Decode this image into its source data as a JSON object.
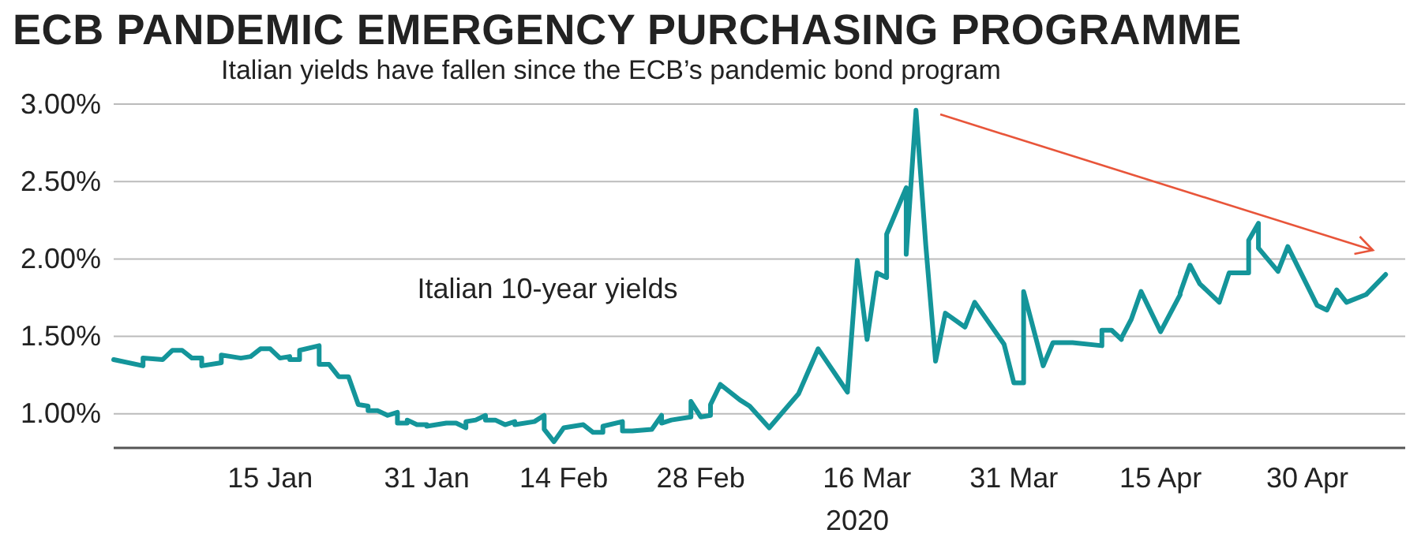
{
  "chart_data": {
    "type": "line",
    "title": "ECB PANDEMIC EMERGENCY PURCHASING PROGRAMME",
    "subtitle": "Italian yields have fallen since the ECB’s pandemic bond program",
    "xlabel": "2020",
    "xlim": [
      "2019-12-30",
      "2020-05-10"
    ],
    "ylim": [
      0.78,
      3.0
    ],
    "xticks": [
      {
        "value": "2020-01-15",
        "label": "15 Jan"
      },
      {
        "value": "2020-01-31",
        "label": "31 Jan"
      },
      {
        "value": "2020-02-14",
        "label": "14 Feb"
      },
      {
        "value": "2020-02-28",
        "label": "28 Feb"
      },
      {
        "value": "2020-03-16",
        "label": "16 Mar"
      },
      {
        "value": "2020-03-31",
        "label": "31 Mar"
      },
      {
        "value": "2020-04-15",
        "label": "15 Apr"
      },
      {
        "value": "2020-04-30",
        "label": "30 Apr"
      }
    ],
    "yticks": [
      {
        "value": 1,
        "label": "1.00%"
      },
      {
        "value": 1.5,
        "label": "1.50%"
      },
      {
        "value": 2,
        "label": "2.00%"
      },
      {
        "value": 2.5,
        "label": "2.50%"
      },
      {
        "value": 3,
        "label": "3.00%"
      }
    ],
    "grid": "y",
    "legend": false,
    "marker": "none",
    "line_style": "solid",
    "series": [
      {
        "name": "Italian 10-year yields",
        "color": "#14959a",
        "x": [
          "2019-12-30",
          "2020-01-02",
          "2020-01-02",
          "2020-01-04",
          "2020-01-05",
          "2020-01-06",
          "2020-01-07",
          "2020-01-08",
          "2020-01-08",
          "2020-01-10",
          "2020-01-10",
          "2020-01-11",
          "2020-01-12",
          "2020-01-13",
          "2020-01-14",
          "2020-01-15",
          "2020-01-16",
          "2020-01-17",
          "2020-01-17",
          "2020-01-18",
          "2020-01-18",
          "2020-01-20",
          "2020-01-20",
          "2020-01-21",
          "2020-01-22",
          "2020-01-23",
          "2020-01-24",
          "2020-01-25",
          "2020-01-25",
          "2020-01-26",
          "2020-01-27",
          "2020-01-28",
          "2020-01-28",
          "2020-01-29",
          "2020-01-29",
          "2020-01-30",
          "2020-01-31",
          "2020-01-31",
          "2020-02-02",
          "2020-02-03",
          "2020-02-04",
          "2020-02-04",
          "2020-02-05",
          "2020-02-06",
          "2020-02-06",
          "2020-02-07",
          "2020-02-08",
          "2020-02-09",
          "2020-02-09",
          "2020-02-11",
          "2020-02-12",
          "2020-02-12",
          "2020-02-13",
          "2020-02-14",
          "2020-02-16",
          "2020-02-17",
          "2020-02-18",
          "2020-02-18",
          "2020-02-20",
          "2020-02-20",
          "2020-02-21",
          "2020-02-23",
          "2020-02-24",
          "2020-02-24",
          "2020-02-25",
          "2020-02-27",
          "2020-02-27",
          "2020-02-28",
          "2020-02-29",
          "2020-02-29",
          "2020-02-29",
          "2020-03-01",
          "2020-03-03",
          "2020-03-04",
          "2020-03-06",
          "2020-03-09",
          "2020-03-11",
          "2020-03-11",
          "2020-03-14",
          "2020-03-14",
          "2020-03-15",
          "2020-03-16",
          "2020-03-17",
          "2020-03-18",
          "2020-03-18",
          "2020-03-20",
          "2020-03-20",
          "2020-03-21",
          "2020-03-22",
          "2020-03-23",
          "2020-03-24",
          "2020-03-26",
          "2020-03-27",
          "2020-03-30",
          "2020-03-31",
          "2020-04-01",
          "2020-04-01",
          "2020-04-03",
          "2020-04-04",
          "2020-04-06",
          "2020-04-09",
          "2020-04-09",
          "2020-04-10",
          "2020-04-11",
          "2020-04-11",
          "2020-04-12",
          "2020-04-13",
          "2020-04-15",
          "2020-04-17",
          "2020-04-17",
          "2020-04-18",
          "2020-04-19",
          "2020-04-21",
          "2020-04-22",
          "2020-04-24",
          "2020-04-24",
          "2020-04-25",
          "2020-04-25",
          "2020-04-27",
          "2020-04-28",
          "2020-05-01",
          "2020-05-02",
          "2020-05-03",
          "2020-05-04",
          "2020-05-06",
          "2020-05-08"
        ],
        "values": [
          1.35,
          1.31,
          1.36,
          1.35,
          1.41,
          1.41,
          1.36,
          1.36,
          1.31,
          1.33,
          1.38,
          1.37,
          1.36,
          1.37,
          1.42,
          1.42,
          1.36,
          1.37,
          1.35,
          1.35,
          1.41,
          1.44,
          1.32,
          1.32,
          1.24,
          1.24,
          1.06,
          1.05,
          1.02,
          1.02,
          0.99,
          1.01,
          0.94,
          0.94,
          0.96,
          0.93,
          0.93,
          0.92,
          0.94,
          0.94,
          0.91,
          0.95,
          0.96,
          0.99,
          0.96,
          0.96,
          0.93,
          0.95,
          0.93,
          0.95,
          0.99,
          0.9,
          0.82,
          0.91,
          0.93,
          0.88,
          0.88,
          0.92,
          0.95,
          0.89,
          0.89,
          0.9,
          0.99,
          0.94,
          0.96,
          0.98,
          1.08,
          0.98,
          0.99,
          1.06,
          1.06,
          1.19,
          1.09,
          1.05,
          0.91,
          1.13,
          1.42,
          1.42,
          1.14,
          1.15,
          1.99,
          1.48,
          1.91,
          1.88,
          2.16,
          2.46,
          2.03,
          2.96,
          2.09,
          1.34,
          1.65,
          1.56,
          1.72,
          1.45,
          1.2,
          1.2,
          1.79,
          1.31,
          1.46,
          1.46,
          1.44,
          1.54,
          1.54,
          1.48,
          1.49,
          1.61,
          1.79,
          1.53,
          1.77,
          1.78,
          1.96,
          1.84,
          1.72,
          1.91,
          1.91,
          2.12,
          2.23,
          2.07,
          1.92,
          2.08,
          1.7,
          1.67,
          1.8,
          1.72,
          1.77,
          1.9
        ]
      }
    ]
  }
}
